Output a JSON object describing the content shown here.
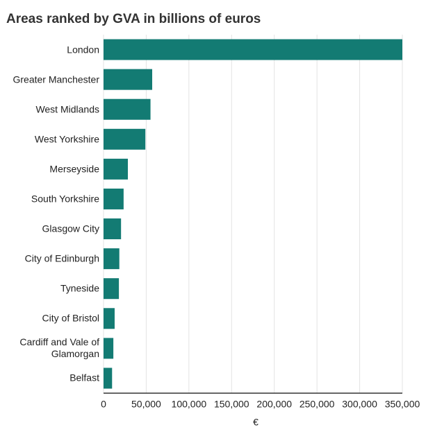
{
  "chart_data": {
    "type": "bar",
    "orientation": "horizontal",
    "title": "Areas ranked by GVA in billions of euros",
    "x_label": "€",
    "categories": [
      "London",
      "Greater Manchester",
      "West Midlands",
      "West Yorkshire",
      "Merseyside",
      "South Yorkshire",
      "Glasgow City",
      "City of Edinburgh",
      "Tyneside",
      "City of Bristol",
      "Cardiff and Vale of Glamorgan",
      "Belfast"
    ],
    "values": [
      350000,
      57000,
      55000,
      49000,
      28500,
      23500,
      20500,
      18500,
      18000,
      13000,
      11500,
      10000
    ],
    "color": "#137b73",
    "xlim": [
      0,
      350000
    ],
    "xticks": [
      0,
      {
        "value": 50000,
        "label": "50,000"
      },
      {
        "value": 100000,
        "label": "100,000"
      },
      {
        "value": 150000,
        "label": "150,000"
      },
      {
        "value": 200000,
        "label": "200,000"
      },
      {
        "value": 250000,
        "label": "250,000"
      },
      {
        "value": 300000,
        "label": "300,000"
      },
      {
        "value": 350000,
        "label": "350,000"
      }
    ],
    "grid": true
  }
}
